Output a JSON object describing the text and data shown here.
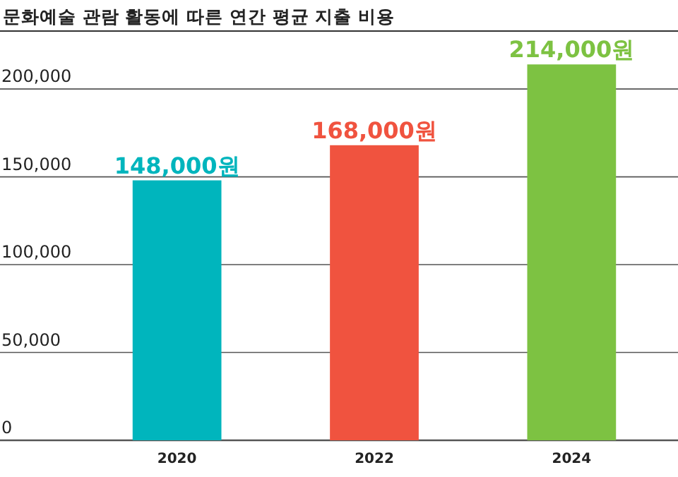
{
  "chart_data": {
    "type": "bar",
    "title": "문화예술 관람 활동에 따른 연간 평균 지출 비용",
    "categories": [
      "2020",
      "2022",
      "2024"
    ],
    "values": [
      148000,
      168000,
      214000
    ],
    "colors": [
      "#00b5bd",
      "#f0533f",
      "#7dc242"
    ],
    "value_labels": [
      "148,000원",
      "168,000원",
      "214,000원"
    ],
    "ylim": [
      0,
      233000
    ],
    "yticks": [
      {
        "value": 0,
        "label": "0"
      },
      {
        "value": 50000,
        "label": "50,000"
      },
      {
        "value": 100000,
        "label": "100,000"
      },
      {
        "value": 150000,
        "label": "150,000"
      },
      {
        "value": 200000,
        "label": "200,000"
      }
    ],
    "grid": "y"
  }
}
